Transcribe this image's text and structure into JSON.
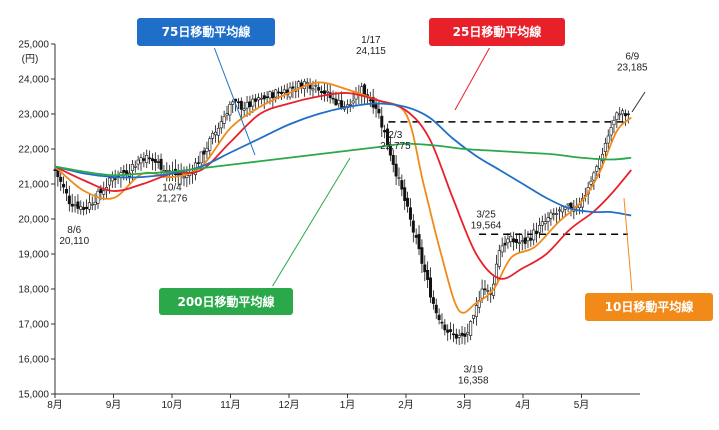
{
  "chart_data": {
    "type": "candlestick-with-moving-averages",
    "y_unit": "(円)",
    "ylim": [
      15000,
      25000
    ],
    "y_ticks": [
      "25,000",
      "24,000",
      "23,000",
      "22,000",
      "21,000",
      "20,000",
      "19,000",
      "18,000",
      "17,000",
      "16,000",
      "15,000"
    ],
    "x_ticks": [
      "8月",
      "9月",
      "10月",
      "11月",
      "12月",
      "1月",
      "2月",
      "3月",
      "4月",
      "5月"
    ],
    "x_tick_positions": [
      0,
      1,
      2,
      3,
      4,
      5,
      6,
      7,
      8,
      9
    ],
    "x_range": [
      0,
      10.0
    ],
    "grid": false,
    "price": {
      "x": [
        0,
        0.25,
        0.5,
        0.75,
        1.0,
        1.25,
        1.5,
        1.75,
        2.0,
        2.25,
        2.5,
        2.75,
        3.0,
        3.25,
        3.5,
        3.75,
        4.0,
        4.25,
        4.5,
        4.75,
        5.0,
        5.25,
        5.5,
        5.75,
        6.0,
        6.25,
        6.5,
        6.75,
        7.0,
        7.15,
        7.3,
        7.45,
        7.6,
        7.75,
        8.0,
        8.25,
        8.5,
        8.75,
        9.0,
        9.25,
        9.5,
        9.65,
        9.8
      ],
      "high": [
        21600,
        21000,
        20600,
        20900,
        21400,
        21600,
        21900,
        22200,
        21800,
        21500,
        21900,
        22700,
        23400,
        23500,
        23600,
        23700,
        23900,
        24000,
        24100,
        24000,
        23600,
        23900,
        23800,
        22900,
        21500,
        20300,
        19600,
        17500,
        16900,
        17200,
        18800,
        18200,
        19500,
        19600,
        19700,
        20000,
        20300,
        20400,
        20700,
        21500,
        22800,
        23200,
        23100
      ],
      "low": [
        20900,
        20200,
        20100,
        20300,
        20500,
        20700,
        21200,
        21400,
        20900,
        20800,
        21300,
        22000,
        22700,
        22900,
        23000,
        23200,
        23400,
        23500,
        23300,
        23300,
        23000,
        23300,
        22800,
        21400,
        20000,
        18400,
        17200,
        16400,
        16400,
        16600,
        17600,
        17300,
        18600,
        18900,
        19100,
        19300,
        19600,
        19800,
        20000,
        20700,
        22000,
        22500,
        22600
      ],
      "close": [
        21400,
        20500,
        20300,
        20700,
        21200,
        21400,
        21800,
        21600,
        21300,
        21200,
        21800,
        22500,
        23300,
        23200,
        23400,
        23600,
        23700,
        23900,
        23800,
        23400,
        23200,
        23700,
        23200,
        21800,
        20400,
        18900,
        17400,
        16700,
        16600,
        17100,
        18100,
        17800,
        19200,
        19400,
        19300,
        19700,
        20100,
        20300,
        20500,
        21400,
        22600,
        23100,
        22900
      ]
    },
    "series": [
      {
        "name": "10日移動平均線",
        "color": "#f28a1a",
        "x": [
          0,
          0.5,
          1.0,
          1.5,
          2.0,
          2.5,
          3.0,
          3.5,
          4.0,
          4.5,
          5.0,
          5.5,
          6.0,
          6.3,
          6.6,
          6.9,
          7.2,
          7.5,
          7.8,
          8.2,
          8.6,
          9.0,
          9.3,
          9.6,
          9.85
        ],
        "y": [
          21500,
          20800,
          20600,
          21300,
          21200,
          21500,
          22600,
          23200,
          23600,
          23900,
          23700,
          23400,
          23000,
          21000,
          19000,
          17400,
          17600,
          18000,
          18900,
          19200,
          19900,
          20500,
          21300,
          22500,
          22900
        ]
      },
      {
        "name": "25日移動平均線",
        "color": "#e8202a",
        "x": [
          0,
          0.5,
          1.0,
          1.5,
          2.0,
          2.5,
          3.0,
          3.5,
          4.0,
          4.5,
          5.0,
          5.5,
          6.0,
          6.4,
          6.8,
          7.2,
          7.6,
          8.0,
          8.4,
          8.8,
          9.2,
          9.5,
          9.85
        ],
        "y": [
          21500,
          21100,
          20800,
          21000,
          21300,
          21400,
          22200,
          23000,
          23300,
          23500,
          23600,
          23400,
          23100,
          22300,
          20600,
          19000,
          18300,
          18600,
          19000,
          19700,
          20200,
          20700,
          21400
        ]
      },
      {
        "name": "75日移動平均線",
        "color": "#1f6fc8",
        "x": [
          0,
          0.5,
          1.0,
          1.5,
          2.0,
          2.5,
          3.0,
          3.5,
          4.0,
          4.5,
          5.0,
          5.5,
          6.0,
          6.4,
          6.8,
          7.2,
          7.6,
          8.0,
          8.4,
          8.8,
          9.2,
          9.5,
          9.85
        ],
        "y": [
          21500,
          21300,
          21200,
          21200,
          21300,
          21500,
          21900,
          22300,
          22700,
          23000,
          23200,
          23300,
          23200,
          22900,
          22300,
          21800,
          21400,
          21000,
          20600,
          20300,
          20200,
          20200,
          20100
        ]
      },
      {
        "name": "200日移動平均線",
        "color": "#2aa84a",
        "x": [
          0,
          0.5,
          1.0,
          1.5,
          2.0,
          2.5,
          3.0,
          3.5,
          4.0,
          4.5,
          5.0,
          5.5,
          6.0,
          6.5,
          7.0,
          7.5,
          8.0,
          8.5,
          9.0,
          9.5,
          9.85
        ],
        "y": [
          21500,
          21350,
          21250,
          21300,
          21350,
          21450,
          21550,
          21650,
          21750,
          21850,
          21950,
          22050,
          22150,
          22100,
          22000,
          21950,
          21900,
          21850,
          21750,
          21700,
          21750
        ]
      }
    ],
    "reference_lines": [
      {
        "y": 22775,
        "x_start": 5.7,
        "x_end": 10.0
      },
      {
        "y": 19564,
        "x_start": 7.25,
        "x_end": 10.0
      }
    ],
    "annotations": [
      {
        "date": "8/6",
        "value": "20,110",
        "x": 0.5,
        "y": 20110
      },
      {
        "date": "10/4",
        "value": "21,276",
        "x": 2.0,
        "y": 21276
      },
      {
        "date": "1/17",
        "value": "24,115",
        "x": 5.4,
        "y": 24115
      },
      {
        "date": "2/3",
        "value": "22,775",
        "x": 5.75,
        "y": 22775
      },
      {
        "date": "3/25",
        "value": "19,564",
        "x": 7.3,
        "y": 19564
      },
      {
        "date": "3/19",
        "value": "16,358",
        "x": 7.15,
        "y": 16358
      },
      {
        "date": "6/9",
        "value": "23,185",
        "x": 9.8,
        "y": 23185
      }
    ]
  },
  "legend": {
    "ma75": {
      "label": "75日移動平均線",
      "color": "#1f6fc8"
    },
    "ma25": {
      "label": "25日移動平均線",
      "color": "#e8202a"
    },
    "ma200": {
      "label": "200日移動平均線",
      "color": "#2aa84a"
    },
    "ma10": {
      "label": "10日移動平均線",
      "color": "#f28a1a"
    }
  }
}
